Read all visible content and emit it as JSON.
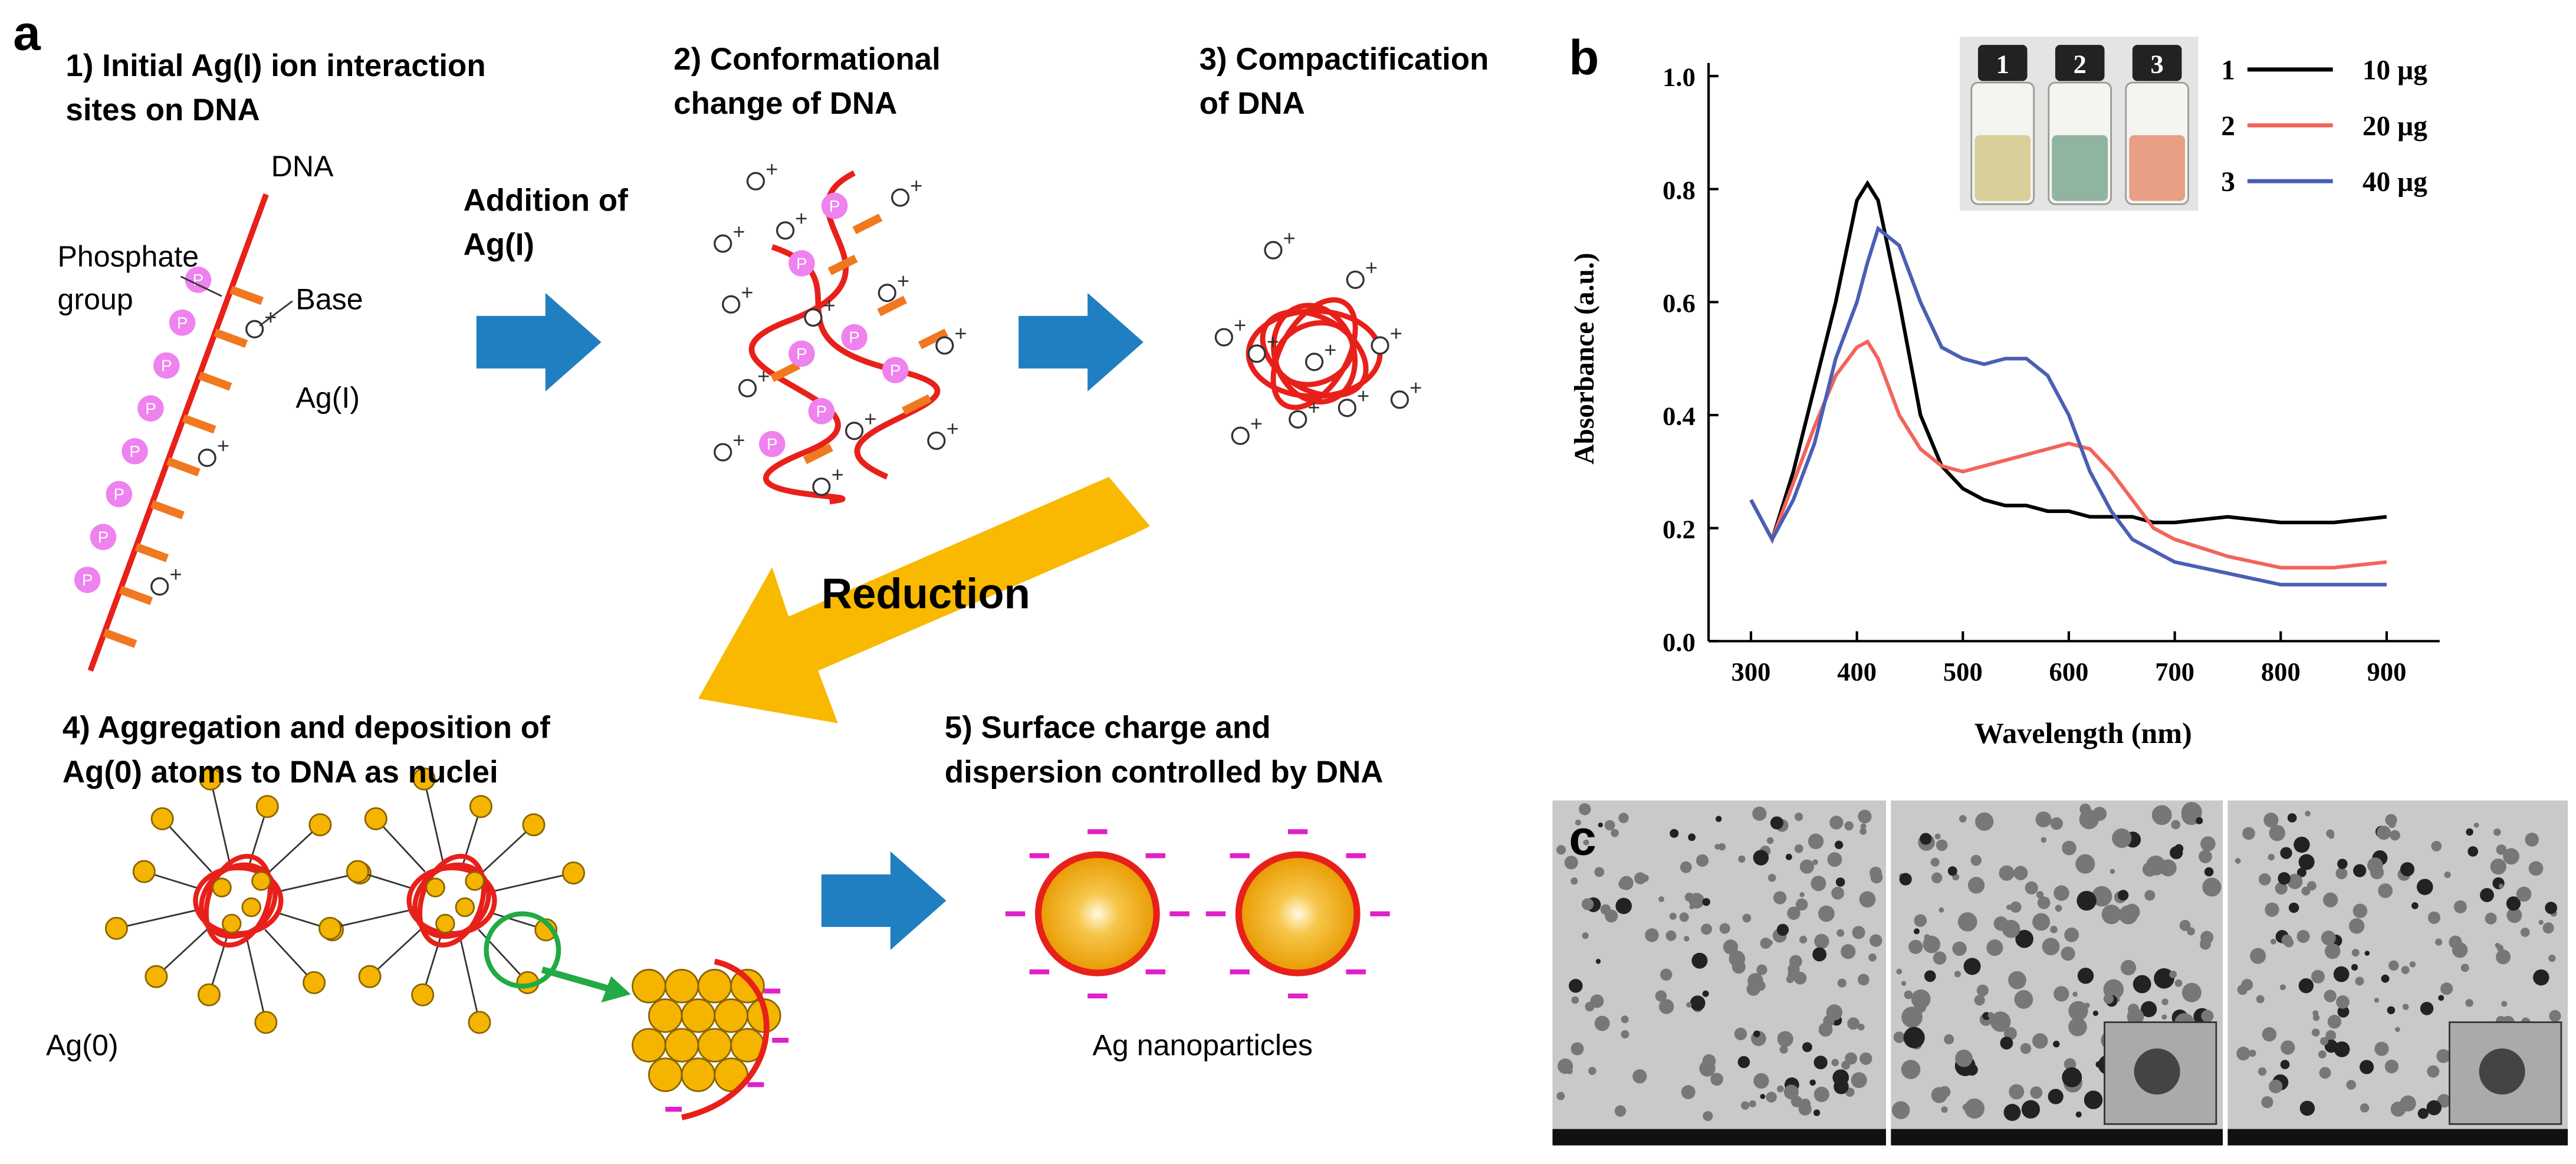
{
  "panel_labels": [
    "a",
    "b",
    "c"
  ],
  "panel_a": {
    "steps": [
      [
        "1) Initial Ag(I) ion interaction",
        "sites on  DNA"
      ],
      [
        "2) Conformational",
        "change of DNA"
      ],
      [
        "3) Compactification",
        "of DNA"
      ],
      [
        "4) Aggregation and deposition of",
        "Ag(0) atoms to DNA as nuclei"
      ],
      [
        "5) Surface charge and",
        "dispersion controlled by DNA"
      ]
    ],
    "labels": {
      "dna": "DNA",
      "phosphate": [
        "Phosphate",
        "group"
      ],
      "base": "Base",
      "ag1": "Ag(I)",
      "addition": [
        "Addition of",
        "Ag(I)"
      ],
      "reduction": "Reduction",
      "ag0": "Ag(0)",
      "nanoparticles": "Ag nanoparticles"
    },
    "symbols": {
      "phosphate": "P",
      "charge": "+"
    }
  },
  "chart_data": {
    "type": "line",
    "x_label": "Wavelength (nm)",
    "y_label": "Absorbance (a.u.)",
    "x": [
      300,
      320,
      340,
      360,
      380,
      400,
      410,
      420,
      440,
      460,
      480,
      500,
      520,
      540,
      560,
      580,
      600,
      620,
      640,
      660,
      680,
      700,
      750,
      800,
      850,
      900
    ],
    "series": [
      {
        "name": "10 µg",
        "color": "#000000",
        "values": [
          0.25,
          0.18,
          0.3,
          0.45,
          0.6,
          0.78,
          0.81,
          0.78,
          0.6,
          0.4,
          0.31,
          0.27,
          0.25,
          0.24,
          0.24,
          0.23,
          0.23,
          0.22,
          0.22,
          0.22,
          0.21,
          0.21,
          0.22,
          0.21,
          0.21,
          0.22
        ]
      },
      {
        "name": "20 µg",
        "color": "#f2645a",
        "values": [
          0.25,
          0.18,
          0.28,
          0.38,
          0.47,
          0.52,
          0.53,
          0.5,
          0.4,
          0.34,
          0.31,
          0.3,
          0.31,
          0.32,
          0.33,
          0.34,
          0.35,
          0.34,
          0.3,
          0.25,
          0.2,
          0.18,
          0.15,
          0.13,
          0.13,
          0.14
        ]
      },
      {
        "name": "40 µg",
        "color": "#4a5fb4",
        "values": [
          0.25,
          0.18,
          0.25,
          0.35,
          0.5,
          0.6,
          0.67,
          0.73,
          0.7,
          0.6,
          0.52,
          0.5,
          0.49,
          0.5,
          0.5,
          0.47,
          0.4,
          0.3,
          0.23,
          0.18,
          0.16,
          0.14,
          0.12,
          0.1,
          0.1,
          0.1
        ]
      }
    ],
    "series_numbers": [
      "1",
      "2",
      "3"
    ],
    "xlim": [
      260,
      950
    ],
    "ylim": [
      0,
      1
    ],
    "xticks": [
      300,
      400,
      500,
      600,
      700,
      800,
      900
    ],
    "yticks": [
      {
        "value": 0,
        "label": "0.0"
      },
      0.2,
      0.4,
      0.6,
      0.8,
      {
        "value": 1,
        "label": "1.0"
      }
    ],
    "legend": "upper right"
  }
}
